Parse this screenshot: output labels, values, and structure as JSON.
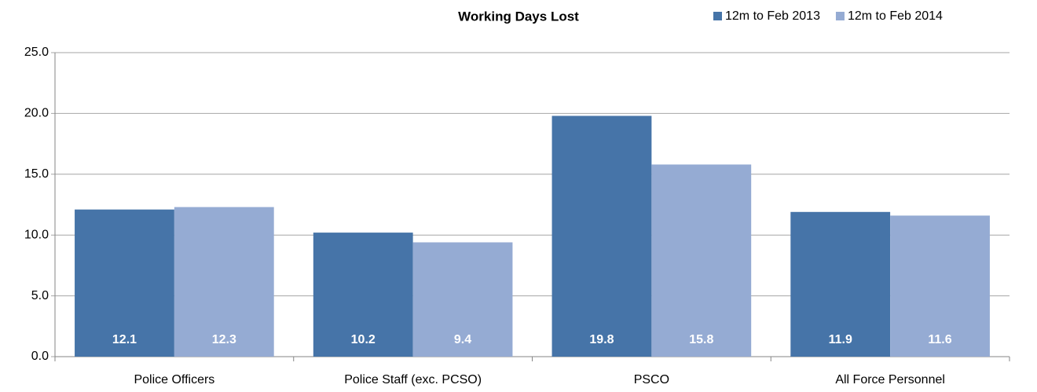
{
  "chart_data": {
    "type": "bar",
    "title": "Working Days Lost",
    "categories": [
      "Police Officers",
      "Police Staff (exc. PCSO)",
      "PSCO",
      "All Force Personnel"
    ],
    "series": [
      {
        "name": "12m to Feb 2013",
        "color": "#4674a8",
        "values": [
          12.1,
          10.2,
          19.8,
          11.9
        ]
      },
      {
        "name": "12m to Feb 2014",
        "color": "#95abd3",
        "values": [
          12.3,
          9.4,
          15.8,
          11.6
        ]
      }
    ],
    "ylim": [
      0,
      25
    ],
    "yticks": [
      {
        "value": 0,
        "label": "0.0"
      },
      {
        "value": 5,
        "label": "5.0"
      },
      {
        "value": 10,
        "label": "10.0"
      },
      {
        "value": 15,
        "label": "15.0"
      },
      {
        "value": 20,
        "label": "20.0"
      },
      {
        "value": 25,
        "label": "25.0"
      }
    ],
    "grid": true,
    "legend": "top-right"
  }
}
